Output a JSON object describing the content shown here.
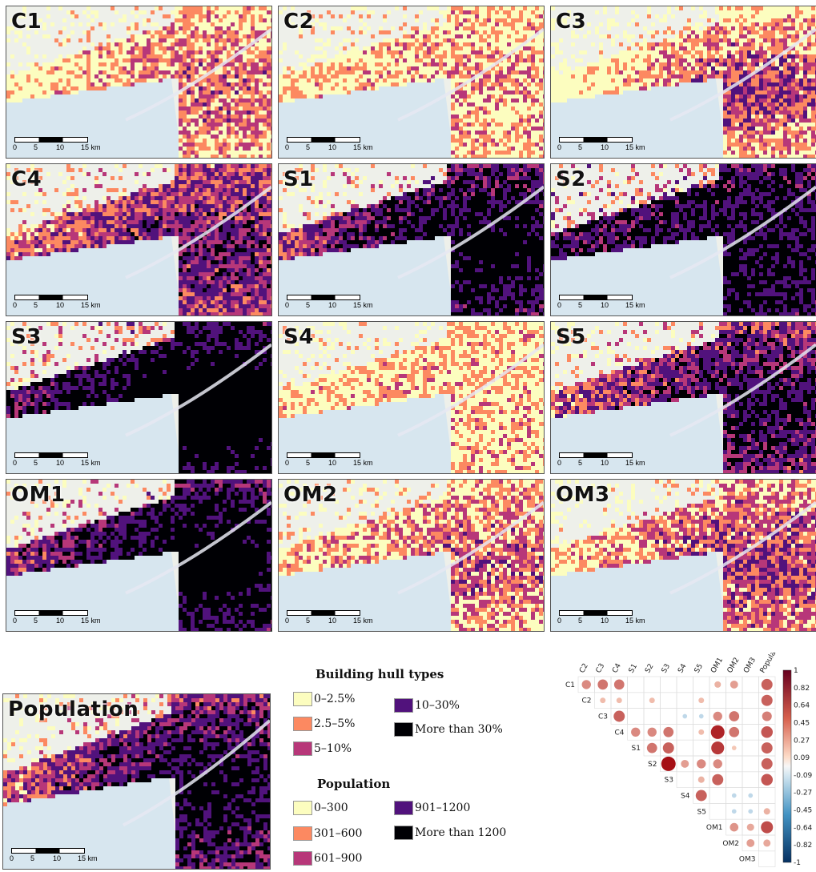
{
  "panels": [
    {
      "label": "C1",
      "intensity": 0.12,
      "core": 0.5,
      "seed": 1
    },
    {
      "label": "C2",
      "intensity": 0.1,
      "core": 0.2,
      "seed": 2
    },
    {
      "label": "C3",
      "intensity": 0.1,
      "core": 0.9,
      "seed": 3
    },
    {
      "label": "C4",
      "intensity": 0.45,
      "core": 0.5,
      "seed": 4
    },
    {
      "label": "S1",
      "intensity": 0.7,
      "core": 0.9,
      "seed": 5
    },
    {
      "label": "S2",
      "intensity": 0.8,
      "core": 0.3,
      "seed": 6
    },
    {
      "label": "S3",
      "intensity": 0.88,
      "core": 0.9,
      "seed": 7
    },
    {
      "label": "S4",
      "intensity": 0.08,
      "core": 0.1,
      "seed": 8
    },
    {
      "label": "S5",
      "intensity": 0.55,
      "core": 0.7,
      "seed": 9
    },
    {
      "label": "OM1",
      "intensity": 0.75,
      "core": 0.95,
      "seed": 10
    },
    {
      "label": "OM2",
      "intensity": 0.18,
      "core": 0.4,
      "seed": 11
    },
    {
      "label": "OM3",
      "intensity": 0.22,
      "core": 0.6,
      "seed": 12
    }
  ],
  "population_panel": {
    "label": "Population",
    "intensity": 0.6,
    "core": 0.9,
    "seed": 13
  },
  "scalebar": {
    "t0": "0",
    "t1": "5",
    "t2": "10",
    "t3": "15 km"
  },
  "legend_hull": {
    "title": "Building hull types",
    "items": [
      {
        "label": "0–2.5%",
        "color": "#fcfdbf"
      },
      {
        "label": "2.5–5%",
        "color": "#fc8961"
      },
      {
        "label": "5–10%",
        "color": "#b73779"
      },
      {
        "label": "10–30%",
        "color": "#51127c"
      },
      {
        "label": "More than 30%",
        "color": "#000004"
      }
    ]
  },
  "legend_pop": {
    "title": "Population",
    "items": [
      {
        "label": "0–300",
        "color": "#fcfdbf"
      },
      {
        "label": "301–600",
        "color": "#fc8961"
      },
      {
        "label": "601–900",
        "color": "#b73779"
      },
      {
        "label": "901–1200",
        "color": "#51127c"
      },
      {
        "label": "More than 1200",
        "color": "#000004"
      }
    ]
  },
  "correlation": {
    "cols": [
      "C2",
      "C3",
      "C4",
      "S1",
      "S2",
      "S3",
      "S4",
      "S5",
      "OM1",
      "OM2",
      "OM3",
      "Population"
    ],
    "rows": [
      "C1",
      "C2",
      "C3",
      "C4",
      "S1",
      "S2",
      "S3",
      "S4",
      "S5",
      "OM1",
      "OM2",
      "OM3"
    ],
    "colorbar_ticks": [
      "1",
      "0.82",
      "0.64",
      "0.45",
      "0.27",
      "0.09",
      "-0.09",
      "-0.27",
      "-0.45",
      "-0.64",
      "-0.82",
      "-1"
    ],
    "values": [
      [
        0.4,
        0.5,
        0.5,
        0,
        0,
        0,
        0,
        0,
        0.2,
        0.3,
        0,
        0.6
      ],
      [
        null,
        0.15,
        0.15,
        0,
        0.15,
        0,
        0,
        0.15,
        0,
        0,
        0,
        0.6
      ],
      [
        null,
        null,
        0.6,
        0,
        0,
        0,
        -0.1,
        -0.1,
        0.4,
        0.5,
        0,
        0.45
      ],
      [
        null,
        null,
        null,
        0.4,
        0.4,
        0.5,
        0,
        0.15,
        0.9,
        0.5,
        0,
        0.65
      ],
      [
        null,
        null,
        null,
        null,
        0.5,
        0.6,
        0,
        0,
        0.8,
        0.1,
        0,
        0.6
      ],
      [
        null,
        null,
        null,
        null,
        null,
        1.0,
        0.3,
        0.4,
        0.4,
        0,
        0,
        0.6
      ],
      [
        null,
        null,
        null,
        null,
        null,
        null,
        0,
        0.2,
        0.6,
        0,
        0,
        0.65
      ],
      [
        null,
        null,
        null,
        null,
        null,
        null,
        null,
        0.6,
        0,
        -0.1,
        -0.1,
        0
      ],
      [
        null,
        null,
        null,
        null,
        null,
        null,
        null,
        null,
        0,
        -0.1,
        -0.1,
        0.2
      ],
      [
        null,
        null,
        null,
        null,
        null,
        null,
        null,
        null,
        null,
        0.35,
        0.25,
        0.7
      ],
      [
        null,
        null,
        null,
        null,
        null,
        null,
        null,
        null,
        null,
        null,
        0.3,
        0.25
      ],
      [
        null,
        null,
        null,
        null,
        null,
        null,
        null,
        null,
        null,
        null,
        null,
        0
      ]
    ]
  }
}
